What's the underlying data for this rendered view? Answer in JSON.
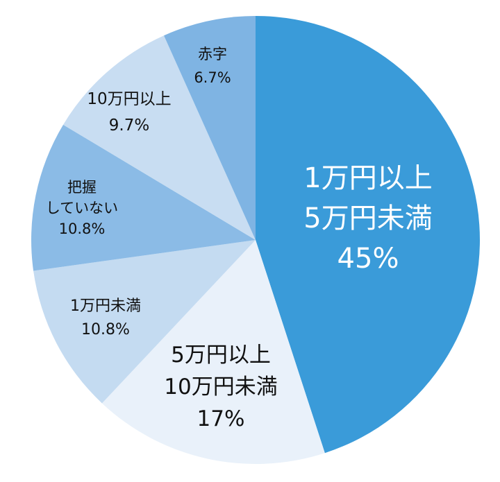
{
  "chart_data": {
    "type": "pie",
    "title": "",
    "start": "top",
    "direction": "clockwise",
    "slices": [
      {
        "lines": [
          "1万円以上",
          "5万円未満",
          "45%"
        ],
        "value": 45,
        "color": "#3a9bd9",
        "text_color": "#ffffff"
      },
      {
        "lines": [
          "5万円以上",
          "10万円未満",
          "17%"
        ],
        "value": 17,
        "color": "#e9f1fa",
        "text_color": "#111111"
      },
      {
        "lines": [
          "1万円未満",
          "10.8%"
        ],
        "value": 10.8,
        "color": "#c4dbf1",
        "text_color": "#111111"
      },
      {
        "lines": [
          "把握",
          "していない",
          "10.8%"
        ],
        "value": 10.8,
        "color": "#8bbbe6",
        "text_color": "#111111"
      },
      {
        "lines": [
          "10万円以上",
          "9.7%"
        ],
        "value": 9.7,
        "color": "#c8ddf2",
        "text_color": "#111111"
      },
      {
        "lines": [
          "赤字",
          "6.7%"
        ],
        "value": 6.7,
        "color": "#7fb4e3",
        "text_color": "#111111"
      }
    ]
  }
}
